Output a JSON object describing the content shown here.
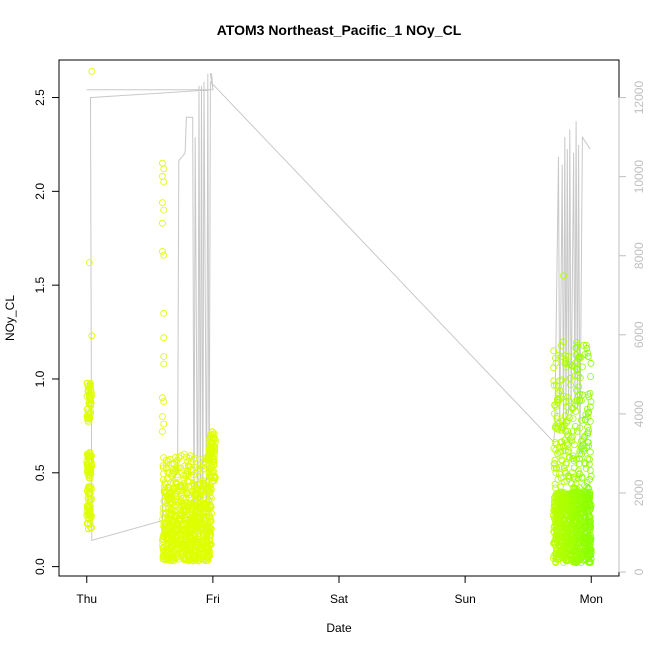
{
  "chart_data": {
    "type": "scatter",
    "title": "ATOM3 Northeast_Pacific_1 NOy_CL",
    "xlabel": "Date",
    "ylabel": "NOy_CL",
    "x_tick_labels": [
      "Thu",
      "Fri",
      "Sat",
      "Sun",
      "Mon"
    ],
    "x_ticks_days": [
      0,
      1,
      2,
      3,
      4
    ],
    "xlim_days": [
      -0.22,
      4.22
    ],
    "ylim": [
      -0.05,
      2.7
    ],
    "y_ticks": [
      0.0,
      0.5,
      1.0,
      1.5,
      2.0,
      2.5
    ],
    "y_tick_labels": [
      "0.0",
      "0.5",
      "1.0",
      "1.5",
      "2.0",
      "2.5"
    ],
    "y2lim": [
      -100,
      12950
    ],
    "y2_ticks": [
      0,
      2000,
      4000,
      6000,
      8000,
      10000,
      12000
    ],
    "y2_tick_labels": [
      "0",
      "2000",
      "4000",
      "6000",
      "8000",
      "10000",
      "12000"
    ],
    "colors": {
      "early_points": "#ddff00",
      "late_points": "#88ff00",
      "altitude_line": "#c8c8c8",
      "axis": "#000000",
      "right_axis": "#bfbfbf"
    },
    "clusters": [
      {
        "x0": 0.0,
        "x1": 0.04,
        "count": 160,
        "bands": [
          [
            0.47,
            0.61,
            0.35
          ],
          [
            0.2,
            0.43,
            0.35
          ],
          [
            0.77,
            0.98,
            0.3
          ]
        ],
        "outliers": [
          [
            0.04,
            2.64
          ],
          [
            0.02,
            1.62
          ],
          [
            0.04,
            1.23
          ]
        ]
      },
      {
        "x0": 0.6,
        "x1": 0.99,
        "count": 800,
        "bands": [
          [
            0.03,
            0.25,
            0.55
          ],
          [
            0.25,
            0.45,
            0.35
          ],
          [
            0.45,
            0.6,
            0.1
          ]
        ],
        "outliers": [
          [
            0.6,
            2.15
          ],
          [
            0.61,
            2.12
          ],
          [
            0.6,
            2.08
          ],
          [
            0.61,
            2.05
          ],
          [
            0.6,
            1.94
          ],
          [
            0.61,
            1.9
          ],
          [
            0.6,
            1.83
          ],
          [
            0.6,
            1.68
          ],
          [
            0.61,
            1.66
          ],
          [
            0.61,
            1.35
          ],
          [
            0.61,
            1.22
          ],
          [
            0.61,
            1.12
          ],
          [
            0.61,
            1.08
          ],
          [
            0.6,
            0.9
          ],
          [
            0.61,
            0.88
          ],
          [
            0.6,
            0.8
          ],
          [
            0.61,
            0.76
          ],
          [
            0.6,
            0.72
          ]
        ]
      },
      {
        "x0": 0.97,
        "x1": 1.02,
        "count": 90,
        "bands": [
          [
            0.45,
            0.72,
            1.0
          ]
        ],
        "outliers": []
      },
      {
        "x0": 3.7,
        "x1": 4.0,
        "count": 950,
        "bands": [
          [
            0.02,
            0.4,
            0.75
          ],
          [
            0.4,
            0.8,
            0.15
          ],
          [
            0.8,
            1.2,
            0.1
          ]
        ],
        "outliers": [
          [
            3.78,
            1.55
          ],
          [
            3.71,
            0.55
          ],
          [
            3.72,
            0.5
          ]
        ]
      }
    ],
    "altitude_series": {
      "x_days": [
        0.0,
        0.02,
        0.03,
        0.98,
        1.0,
        0.98,
        0.99,
        1.0,
        0.03,
        0.04,
        0.6,
        0.6,
        0.72,
        0.73,
        0.78,
        0.79,
        0.84,
        0.85,
        0.86,
        0.88,
        0.89,
        0.9,
        0.91,
        0.92,
        0.93,
        0.95,
        0.96,
        0.97,
        0.98,
        3.7,
        3.71,
        3.74,
        3.75,
        3.77,
        3.78,
        3.79,
        3.8,
        3.81,
        3.82,
        3.83,
        3.84,
        3.86,
        3.87,
        3.88,
        3.89,
        3.9,
        3.91,
        3.93,
        3.95,
        3.97,
        3.99
      ],
      "values": [
        12200,
        12200,
        12200,
        12200,
        12200,
        12600,
        12600,
        12200,
        12000,
        800,
        1300,
        2000,
        2500,
        10400,
        10600,
        11500,
        11500,
        1000,
        11000,
        800,
        12300,
        900,
        12300,
        1100,
        12400,
        1200,
        12600,
        1300,
        12400,
        3300,
        3500,
        10500,
        3500,
        10300,
        3500,
        11000,
        3800,
        10700,
        4000,
        11200,
        4000,
        10600,
        4200,
        11400,
        4100,
        10800,
        3000,
        11000,
        10900,
        10800,
        10700
      ]
    }
  }
}
